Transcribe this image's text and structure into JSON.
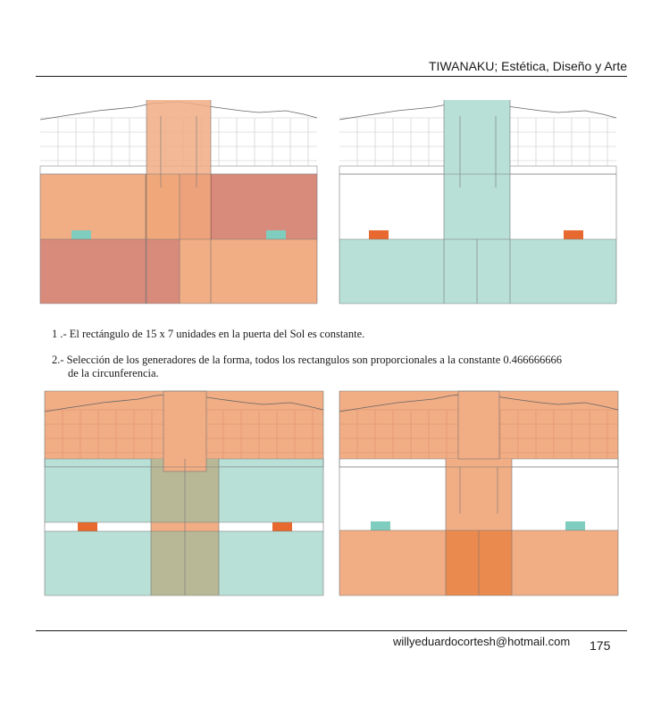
{
  "header": {
    "title": "TIWANAKU; Estética, Diseño y Arte"
  },
  "captions": {
    "item1": "1 .- El rectángulo de 15 x 7 unidades en la puerta del Sol es constante.",
    "item2_line1": "2.- Selección de los generadores de la forma, todos los rectangulos son proporcionales a la constante 0.466666666",
    "item2_line2": "de la circunferencia."
  },
  "footer": {
    "email": "willyeduardocortesh@hotmail.com",
    "page_number": "175"
  },
  "colors": {
    "orange_light": "#f1ad84",
    "orange_mid": "#ea8a4e",
    "orange_strong": "#e8692f",
    "red_muted": "#d98b7b",
    "red_strong": "#d6654e",
    "teal_light": "#b8e0d7",
    "teal_block": "#7fcdbe",
    "olive": "#b8b896",
    "line": "#555555"
  }
}
